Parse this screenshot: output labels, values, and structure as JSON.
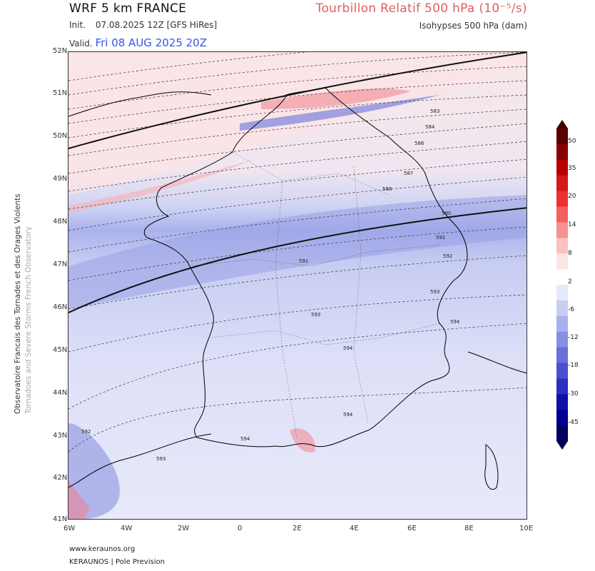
{
  "header": {
    "model": "WRF 5 km FRANCE",
    "parameter": "Tourbillon Relatif 500 hPa (10⁻⁵/s)",
    "init_label": "Init.",
    "init_value": "07.08.2025 12Z [GFS HiRes]",
    "isohypse_label": "Isohypses 500 hPa (dam)",
    "valid_label": "Valid.",
    "valid_value": "Fri 08 AUG 2025 20Z"
  },
  "side_text": {
    "line1": "Observatoire Francais des Tornades et des Orages Violents",
    "line2": "Tornadoes and Severe Storms French Observatory"
  },
  "map": {
    "lat_labels": [
      "52N",
      "51N",
      "50N",
      "49N",
      "48N",
      "47N",
      "46N",
      "45N",
      "44N",
      "43N",
      "42N",
      "41N"
    ],
    "lon_labels": [
      "6W",
      "4W",
      "2W",
      "0",
      "2E",
      "4E",
      "6E",
      "8E",
      "10E"
    ],
    "contour_labels": [
      "583",
      "584",
      "586",
      "587",
      "588",
      "590",
      "591",
      "592",
      "593",
      "594",
      "591",
      "593",
      "594",
      "594",
      "594",
      "592",
      "593"
    ]
  },
  "colorbar": {
    "ticks": [
      "50",
      "35",
      "20",
      "14",
      "8",
      "2",
      "-6",
      "-12",
      "-18",
      "-30",
      "-45"
    ],
    "colors": [
      "#5a0000",
      "#8a0000",
      "#b80000",
      "#d81818",
      "#ee3030",
      "#f46060",
      "#f89090",
      "#fbc0c0",
      "#fde4e4",
      "#ffffff",
      "#e6e8fb",
      "#c9cdf4",
      "#a9b0ed",
      "#8890e4",
      "#6870dc",
      "#4a50d0",
      "#2a30c0",
      "#1010a8",
      "#000090",
      "#000060"
    ]
  },
  "footer": {
    "url": "www.keraunos.org",
    "credit": "KERAUNOS | Pole Prevision"
  }
}
